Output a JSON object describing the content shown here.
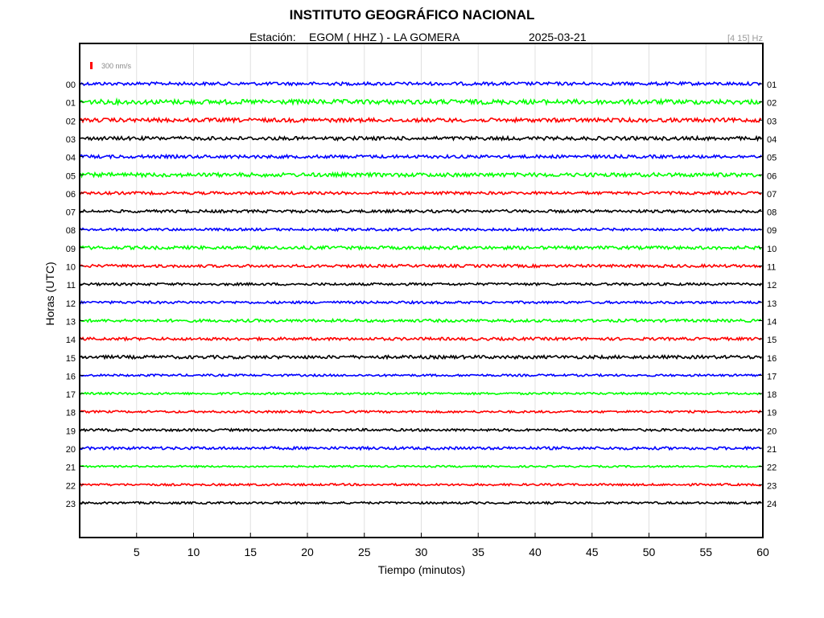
{
  "title": "INSTITUTO GEOGRÁFICO NACIONAL",
  "station_label": "Estación:",
  "station": "EGOM ( HHZ ) - LA GOMERA",
  "date": "2025-03-21",
  "filter": "[4 15] Hz",
  "scale_label": "300 nm/s",
  "colors": {
    "blue": "#0000ff",
    "green": "#00ff00",
    "red": "#ff0000",
    "black": "#000000",
    "frame": "#000000",
    "grid": "#e0e0e0"
  },
  "chart_data": {
    "type": "line",
    "title": "INSTITUTO GEOGRÁFICO NACIONAL",
    "xlabel": "Tiempo (minutos)",
    "ylabel": "Horas (UTC)",
    "xlim": [
      0,
      60
    ],
    "x_ticks": [
      "5",
      "10",
      "15",
      "20",
      "25",
      "30",
      "35",
      "40",
      "45",
      "50",
      "55",
      "60"
    ],
    "grid": true,
    "left_tick_labels": [
      "00",
      "01",
      "02",
      "03",
      "04",
      "05",
      "06",
      "07",
      "08",
      "09",
      "10",
      "11",
      "12",
      "13",
      "14",
      "15",
      "16",
      "17",
      "18",
      "19",
      "20",
      "21",
      "22",
      "23"
    ],
    "right_tick_labels": [
      "01",
      "02",
      "03",
      "04",
      "05",
      "06",
      "07",
      "08",
      "09",
      "10",
      "11",
      "12",
      "13",
      "14",
      "15",
      "16",
      "17",
      "18",
      "19",
      "20",
      "21",
      "22",
      "23",
      "24"
    ],
    "series": [
      {
        "hour": "00",
        "color": "blue",
        "amplitude": 0.9
      },
      {
        "hour": "01",
        "color": "green",
        "amplitude": 1.3
      },
      {
        "hour": "02",
        "color": "red",
        "amplitude": 1.1
      },
      {
        "hour": "03",
        "color": "black",
        "amplitude": 1.0
      },
      {
        "hour": "04",
        "color": "blue",
        "amplitude": 0.9
      },
      {
        "hour": "05",
        "color": "green",
        "amplitude": 1.1
      },
      {
        "hour": "06",
        "color": "red",
        "amplitude": 0.8
      },
      {
        "hour": "07",
        "color": "black",
        "amplitude": 0.8
      },
      {
        "hour": "08",
        "color": "blue",
        "amplitude": 0.7
      },
      {
        "hour": "09",
        "color": "green",
        "amplitude": 0.9
      },
      {
        "hour": "10",
        "color": "red",
        "amplitude": 0.8
      },
      {
        "hour": "11",
        "color": "black",
        "amplitude": 0.7
      },
      {
        "hour": "12",
        "color": "blue",
        "amplitude": 0.7
      },
      {
        "hour": "13",
        "color": "green",
        "amplitude": 0.8
      },
      {
        "hour": "14",
        "color": "red",
        "amplitude": 0.8
      },
      {
        "hour": "15",
        "color": "black",
        "amplitude": 0.9
      },
      {
        "hour": "16",
        "color": "blue",
        "amplitude": 0.6
      },
      {
        "hour": "17",
        "color": "green",
        "amplitude": 0.6
      },
      {
        "hour": "18",
        "color": "red",
        "amplitude": 0.6
      },
      {
        "hour": "19",
        "color": "black",
        "amplitude": 0.7
      },
      {
        "hour": "20",
        "color": "blue",
        "amplitude": 0.8
      },
      {
        "hour": "21",
        "color": "green",
        "amplitude": 0.5
      },
      {
        "hour": "22",
        "color": "red",
        "amplitude": 0.6
      },
      {
        "hour": "23",
        "color": "black",
        "amplitude": 0.6
      }
    ]
  }
}
